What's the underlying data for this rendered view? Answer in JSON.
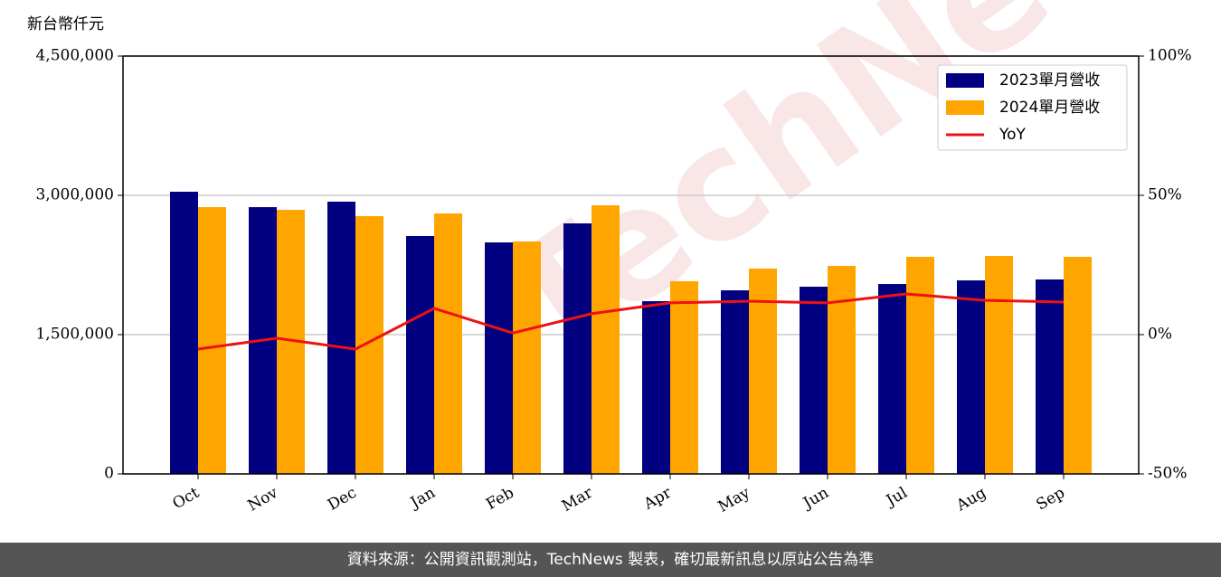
{
  "chart_data": {
    "type": "bar",
    "y_label": "新台幣仟元",
    "watermark": "TechNews",
    "footer": "資料來源：公開資訊觀測站，TechNews 製表，確切最新訊息以原站公告為準",
    "categories": [
      "Oct",
      "Nov",
      "Dec",
      "Jan",
      "Feb",
      "Mar",
      "Apr",
      "May",
      "Jun",
      "Jul",
      "Aug",
      "Sep"
    ],
    "series": [
      {
        "name": "2023單月營收",
        "color": "#000080",
        "type": "bar",
        "values": [
          3039000,
          2873000,
          2932000,
          2562000,
          2493000,
          2698000,
          1860000,
          1977000,
          2016000,
          2045000,
          2084000,
          2094000
        ]
      },
      {
        "name": "2024單月營收",
        "color": "#ffa500",
        "type": "bar",
        "values": [
          2873000,
          2844000,
          2776000,
          2805000,
          2503000,
          2893000,
          2075000,
          2211000,
          2240000,
          2338000,
          2347000,
          2338000
        ]
      },
      {
        "name": "YoY",
        "color": "#ee1111",
        "type": "line",
        "axis": "y2",
        "values": [
          -5.2,
          -1.3,
          -5.2,
          9.4,
          0.6,
          7.5,
          11.4,
          12.0,
          11.4,
          14.6,
          12.3,
          11.7
        ]
      }
    ],
    "ylim": [
      0,
      4500000
    ],
    "yticks": [
      0,
      {
        "value": 1500000,
        "label": "1,500,000"
      },
      {
        "value": 3000000,
        "label": "3,000,000"
      },
      {
        "value": 4500000,
        "label": "4,500,000"
      }
    ],
    "y2lim": [
      -50,
      100
    ],
    "y2ticks": [
      {
        "value": -50,
        "label": "-50%"
      },
      {
        "value": 0,
        "label": "0%"
      },
      {
        "value": 50,
        "label": "50%"
      },
      {
        "value": 100,
        "label": "100%"
      }
    ],
    "grid": true,
    "legend": "upper right"
  }
}
